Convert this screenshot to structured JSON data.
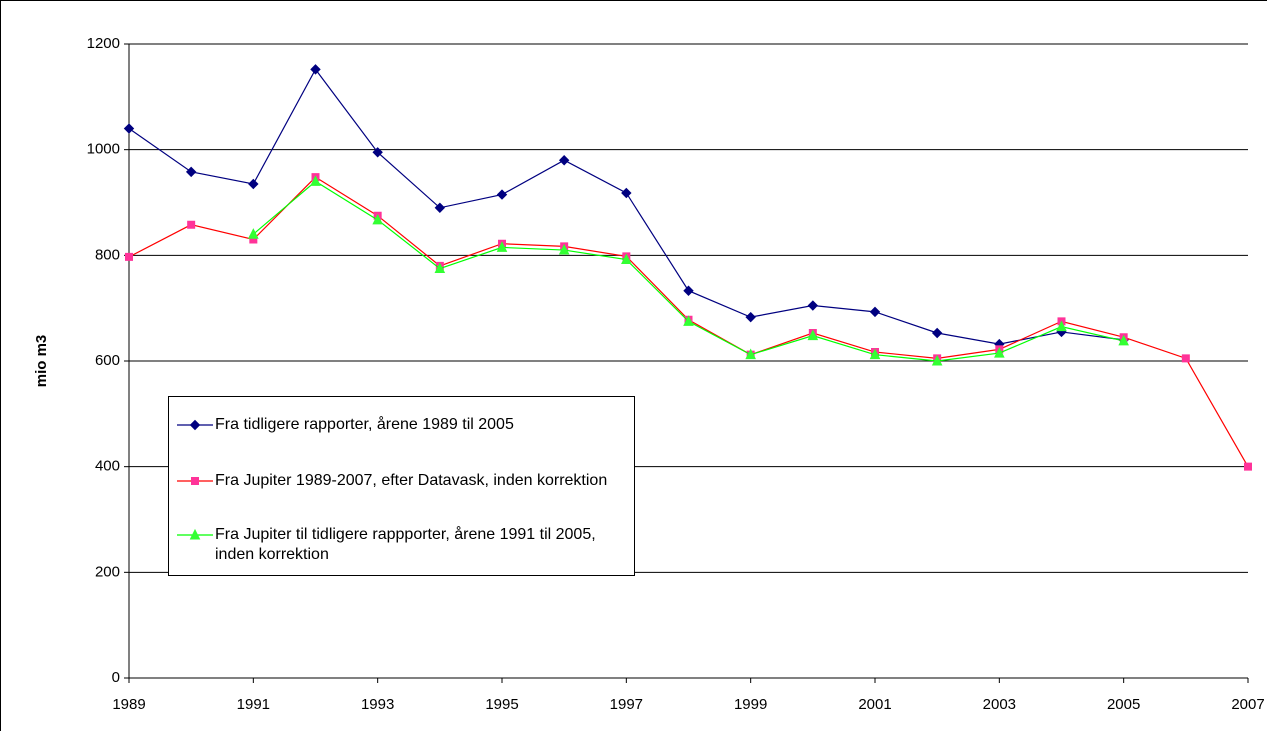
{
  "chart_data": {
    "type": "line",
    "ylabel": "mio m3",
    "x": [
      1989,
      1990,
      1991,
      1992,
      1993,
      1994,
      1995,
      1996,
      1997,
      1998,
      1999,
      2000,
      2001,
      2002,
      2003,
      2004,
      2005,
      2006,
      2007
    ],
    "xlim": [
      1989,
      2007
    ],
    "xticks": [
      1989,
      1991,
      1993,
      1995,
      1997,
      1999,
      2001,
      2003,
      2005,
      2007
    ],
    "ylim": [
      0,
      1200
    ],
    "yticks": [
      0,
      200,
      400,
      600,
      800,
      1000,
      1200
    ],
    "grid": true,
    "series": [
      {
        "name": "Fra tidligere rapporter, årene 1989 til 2005",
        "color": "#000080",
        "marker": "diamond",
        "marker_color": "#000080",
        "values": [
          1040,
          958,
          935,
          1152,
          995,
          890,
          915,
          980,
          918,
          733,
          683,
          705,
          693,
          653,
          632,
          655,
          640,
          null,
          null
        ]
      },
      {
        "name": "Fra Jupiter 1989-2007, efter Datavask, inden korrektion",
        "color": "#ff0000",
        "marker": "square",
        "marker_color": "#ff3399",
        "values": [
          797,
          858,
          830,
          948,
          875,
          780,
          822,
          817,
          798,
          678,
          612,
          653,
          617,
          605,
          622,
          675,
          645,
          605,
          400
        ]
      },
      {
        "name": "Fra Jupiter til tidligere rappporter, årene 1991 til 2005, inden korrektion",
        "color": "#00ff00",
        "marker": "triangle",
        "marker_color": "#33ff33",
        "values": [
          null,
          null,
          840,
          940,
          867,
          775,
          815,
          810,
          792,
          675,
          612,
          648,
          612,
          600,
          615,
          665,
          638,
          null,
          null
        ]
      }
    ]
  }
}
